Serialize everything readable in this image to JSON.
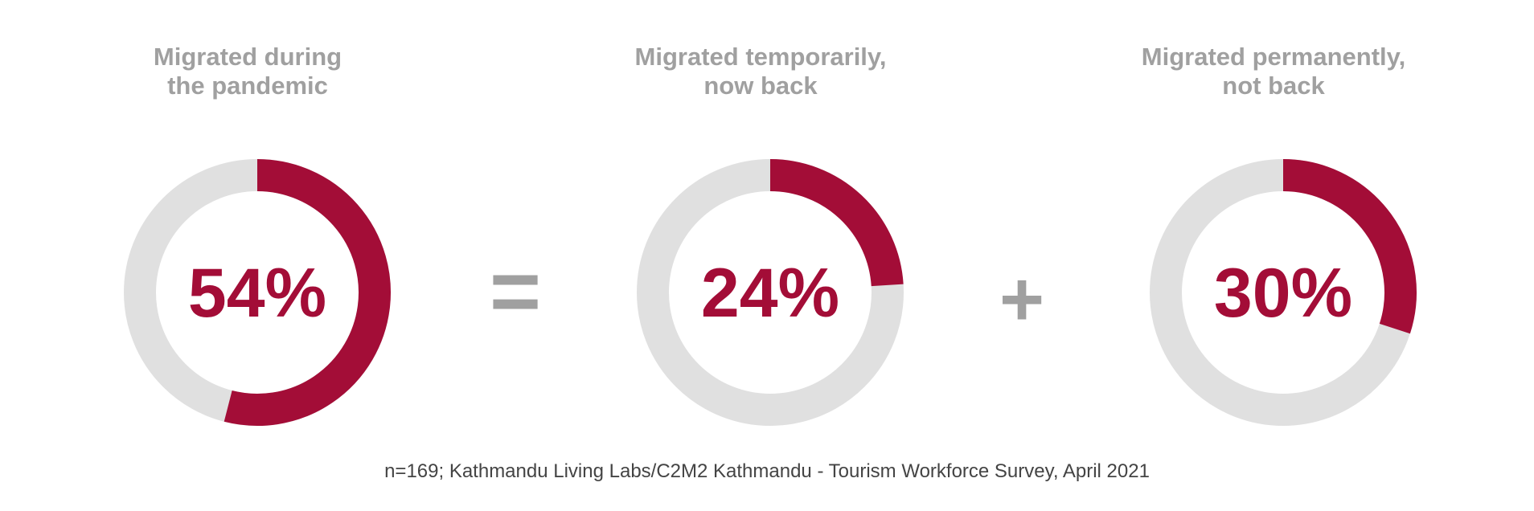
{
  "chart_data": {
    "type": "pie",
    "variant": "donut",
    "colors": {
      "filled": "#a30d37",
      "remainder": "#e0e0e0",
      "label_text": "#a30d37",
      "title_text": "#a0a0a0",
      "operator_text": "#a0a0a0",
      "source_text": "#444444"
    },
    "donuts": [
      {
        "title_lines": [
          "Migrated during",
          "the pandemic"
        ],
        "value": 54,
        "label": "54%"
      },
      {
        "title_lines": [
          "Migrated temporarily,",
          "now back"
        ],
        "value": 24,
        "label": "24%"
      },
      {
        "title_lines": [
          "Migrated permanently,",
          "not back"
        ],
        "value": 30,
        "label": "30%"
      }
    ],
    "operators": [
      "=",
      "+"
    ],
    "source": "n=169; Kathmandu Living Labs/C2M2 Kathmandu - Tourism Workforce Survey, April 2021"
  }
}
